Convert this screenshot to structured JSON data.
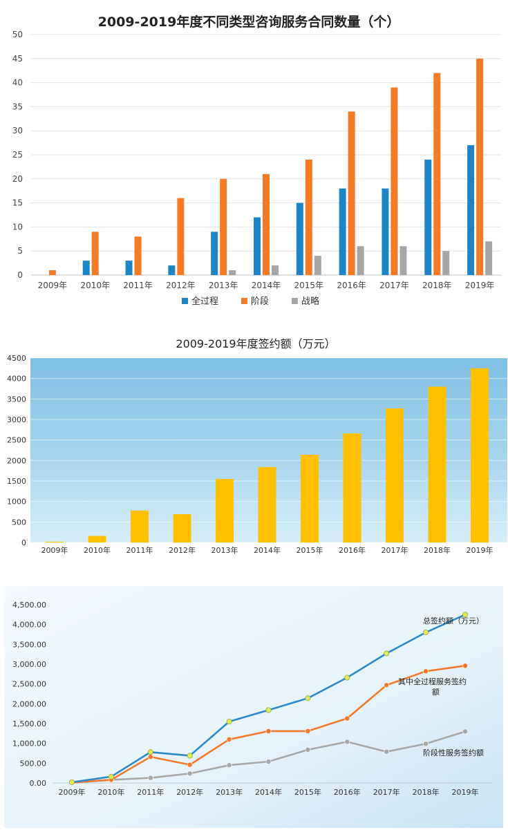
{
  "colors": {
    "quanguocheng": "#1f84c6",
    "jieduan": "#f47a26",
    "zhanlue": "#a6a6a6",
    "gold_bar": "#ffc000",
    "panel_blue": "#8fc7e6",
    "line_total": "#2a8ac7",
    "line_full": "#f07a2a",
    "line_stage": "#a8a8a8",
    "dot_yellow": "#e3e85a"
  },
  "chart_data": [
    {
      "type": "bar",
      "title": "2009-2019年度不同类型咨询服务合同数量（个）",
      "categories": [
        "2009年",
        "2010年",
        "2011年",
        "2012年",
        "2013年",
        "2014年",
        "2015年",
        "2016年",
        "2017年",
        "2018年",
        "2019年"
      ],
      "series": [
        {
          "name": "全过程",
          "values": [
            0,
            3,
            3,
            2,
            9,
            12,
            15,
            18,
            18,
            24,
            27
          ]
        },
        {
          "name": "阶段",
          "values": [
            1,
            9,
            8,
            16,
            20,
            21,
            24,
            34,
            39,
            42,
            45
          ]
        },
        {
          "name": "战略",
          "values": [
            0,
            0,
            0,
            0,
            1,
            2,
            4,
            6,
            6,
            5,
            7
          ]
        }
      ],
      "ylim": [
        0,
        50
      ],
      "yticks": [
        "0",
        "5",
        "10",
        "15",
        "20",
        "25",
        "30",
        "35",
        "40",
        "45",
        "50"
      ],
      "grid": true,
      "legend": "bottom"
    },
    {
      "type": "bar",
      "title": "2009-2019年度签约额（万元）",
      "categories": [
        "2009年",
        "2010年",
        "2011年",
        "2012年",
        "2013年",
        "2014年",
        "2015年",
        "2016年",
        "2017年",
        "2018年",
        "2019年"
      ],
      "values": [
        20,
        160,
        780,
        690,
        1550,
        1840,
        2140,
        2660,
        3270,
        3800,
        4250
      ],
      "ylim": [
        0,
        4500
      ],
      "yticks": [
        "0",
        "500",
        "1000",
        "1500",
        "2000",
        "2500",
        "3000",
        "3500",
        "4000",
        "4500"
      ],
      "grid": true
    },
    {
      "type": "line",
      "categories": [
        "2009年",
        "2010年",
        "2011年",
        "2012年",
        "2013年",
        "2014年",
        "2015年",
        "2016年",
        "2017年",
        "2018年",
        "2019年"
      ],
      "series": [
        {
          "name": "总签约额（万元）",
          "values": [
            20,
            160,
            780,
            690,
            1550,
            1840,
            2140,
            2660,
            3270,
            3800,
            4250
          ]
        },
        {
          "name": "其中全过程服务签约额",
          "values": [
            10,
            80,
            660,
            460,
            1100,
            1310,
            1310,
            1630,
            2470,
            2820,
            2960
          ]
        },
        {
          "name": "阶段性服务签约额",
          "values": [
            10,
            80,
            130,
            240,
            450,
            540,
            840,
            1040,
            790,
            990,
            1300
          ]
        }
      ],
      "series_label_lines": [
        [
          "总签约额（万元）"
        ],
        [
          "其中全过程服务签约",
          "额"
        ],
        [
          "阶段性服务签约额"
        ]
      ],
      "ylim": [
        0,
        4500
      ],
      "yticks": [
        "0.00",
        "500.00",
        "1,000.00",
        "1,500.00",
        "2,000.00",
        "2,500.00",
        "3,000.00",
        "3,500.00",
        "4,000.00",
        "4,500.00"
      ],
      "grid": false,
      "legend": "inline labels"
    }
  ]
}
